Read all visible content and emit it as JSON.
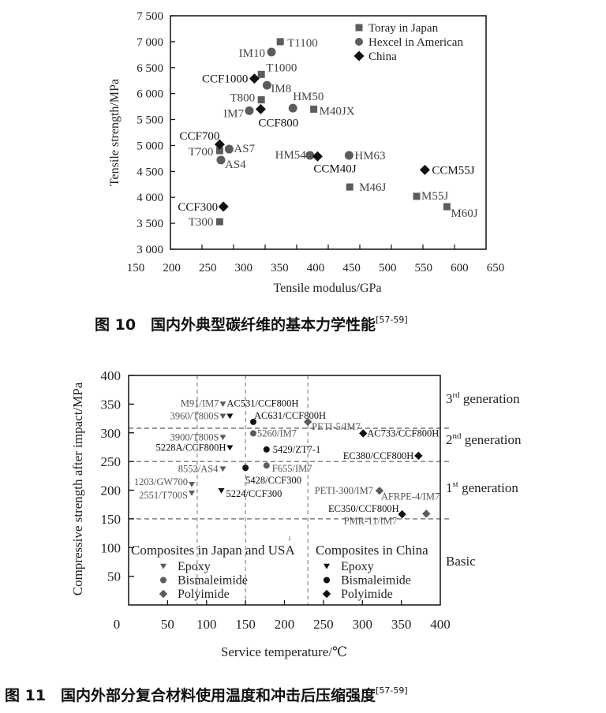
{
  "captions": {
    "fig10": "图 10　国内外典型碳纤维的基本力学性能",
    "fig10_ref": "[57-59]",
    "fig11": "图 11　国内外部分复合材料使用温度和冲击后压缩强度",
    "fig11_ref": "[57-59]"
  },
  "colors": {
    "japan_usa": "#5c5c5c",
    "china": "#111111"
  },
  "chart_data": [
    {
      "type": "scatter",
      "xlabel": "Tensile modulus/GPa",
      "ylabel": "Tensile strength/MPa",
      "xlim": [
        150,
        650
      ],
      "ylim": [
        3000,
        7500
      ],
      "xticks": [
        "150",
        "200",
        "250",
        "300",
        "350",
        "400",
        "450",
        "500",
        "550",
        "600",
        "650"
      ],
      "yticks": [
        "3 000",
        "3 500",
        "4 000",
        "4 500",
        "5 000",
        "5 500",
        "6 000",
        "6 500",
        "7 000",
        "7 500"
      ],
      "legend_position": "top-right",
      "grid": false,
      "series": [
        {
          "name": "Toray in Japan",
          "marker": "square",
          "color": "#5c5c5c",
          "points": [
            {
              "label": "T1100",
              "x": 324,
              "y": 7000
            },
            {
              "label": "T1000",
              "x": 294,
              "y": 6370
            },
            {
              "label": "T800",
              "x": 294,
              "y": 5880
            },
            {
              "label": "M40JX",
              "x": 377,
              "y": 5700
            },
            {
              "label": "T700",
              "x": 228,
              "y": 4900
            },
            {
              "label": "T300",
              "x": 228,
              "y": 3530
            },
            {
              "label": "M46J",
              "x": 434,
              "y": 4200
            },
            {
              "label": "M55J",
              "x": 540,
              "y": 4020
            },
            {
              "label": "M60J",
              "x": 588,
              "y": 3820
            }
          ]
        },
        {
          "name": "Hexcel in American",
          "marker": "circle",
          "color": "#5c5c5c",
          "points": [
            {
              "label": "IM10",
              "x": 310,
              "y": 6800
            },
            {
              "label": "IM8",
              "x": 303,
              "y": 6160
            },
            {
              "label": "HM50",
              "x": 344,
              "y": 5720
            },
            {
              "label": "IM7",
              "x": 275,
              "y": 5670
            },
            {
              "label": "AS7",
              "x": 243,
              "y": 4930
            },
            {
              "label": "AS4",
              "x": 230,
              "y": 4720
            },
            {
              "label": "HM54",
              "x": 371,
              "y": 4810
            },
            {
              "label": "HM63",
              "x": 433,
              "y": 4810
            }
          ]
        },
        {
          "name": "China",
          "marker": "diamond",
          "color": "#111111",
          "points": [
            {
              "label": "CCF1000",
              "x": 283,
              "y": 6290
            },
            {
              "label": "CCF800",
              "x": 293,
              "y": 5700
            },
            {
              "label": "CCF700",
              "x": 228,
              "y": 5020
            },
            {
              "label": "CCM40J",
              "x": 383,
              "y": 4790
            },
            {
              "label": "CCM55J",
              "x": 553,
              "y": 4530
            },
            {
              "label": "CCF300",
              "x": 234,
              "y": 3820
            }
          ]
        }
      ]
    },
    {
      "type": "scatter",
      "xlabel": "Service temperature/℃",
      "ylabel": "Compressive strength after impact/MPa",
      "xlim": [
        0,
        400
      ],
      "ylim": [
        0,
        400
      ],
      "xticks": [
        "0",
        "50",
        "100",
        "150",
        "200",
        "250",
        "300",
        "350",
        "400"
      ],
      "yticks": [
        "50",
        "100",
        "150",
        "200",
        "250",
        "300",
        "350",
        "400"
      ],
      "ytick_values": [
        50,
        100,
        150,
        200,
        250,
        300,
        350,
        400
      ],
      "vertical_reference_lines": [
        88,
        150,
        230
      ],
      "horizontal_reference_lines": [
        150,
        250,
        308
      ],
      "zones": [
        {
          "base": "3",
          "sup": "rd",
          "text": " generation"
        },
        {
          "base": "2",
          "sup": "nd",
          "text": " generation"
        },
        {
          "base": "1",
          "sup": "st",
          "text": " generation"
        },
        {
          "base": "Basic",
          "sup": "",
          "text": ""
        }
      ],
      "legend": {
        "groups": [
          {
            "title": "Composites in Japan and USA",
            "color": "#5c5c5c",
            "items": [
              "Epoxy",
              "Bismaleimide",
              "Polyimide"
            ]
          },
          {
            "title": "Composites in China",
            "color": "#111111",
            "items": [
              "Epoxy",
              "Bismaleimide",
              "Polyimide"
            ]
          }
        ],
        "position": "bottom-inside"
      },
      "series": [
        {
          "name": "Epoxy",
          "group": "Japan and USA",
          "marker": "triangle-down",
          "color": "#5c5c5c",
          "points": [
            {
              "label": "M91/IM7",
              "x": 121,
              "y": 350
            },
            {
              "label": "3960/T800S",
              "x": 121,
              "y": 329
            },
            {
              "label": "3900/T800S",
              "x": 121,
              "y": 292
            },
            {
              "label": "8552/AS4",
              "x": 121,
              "y": 237
            },
            {
              "label": "1203/GW700",
              "x": 81,
              "y": 210
            },
            {
              "label": "2551/T700S",
              "x": 81,
              "y": 195
            }
          ]
        },
        {
          "name": "Epoxy",
          "group": "China",
          "marker": "triangle-down",
          "color": "#111111",
          "points": [
            {
              "label": "AC531/CCF800H",
              "x": 130,
              "y": 329
            },
            {
              "label": "5228A/CCF800H",
              "x": 130,
              "y": 274
            },
            {
              "label": "5224/CCF300",
              "x": 119,
              "y": 199
            }
          ]
        },
        {
          "name": "Bismaleimide",
          "group": "Japan and USA",
          "marker": "circle",
          "color": "#5c5c5c",
          "points": [
            {
              "label": "5260/IM7",
              "x": 160,
              "y": 299
            },
            {
              "label": "F655/IM7",
              "x": 177,
              "y": 243
            }
          ]
        },
        {
          "name": "Bismaleimide",
          "group": "China",
          "marker": "circle",
          "color": "#111111",
          "points": [
            {
              "label": "AC631/CCF800H",
              "x": 160,
              "y": 319
            },
            {
              "label": "5429/ZT7-1",
              "x": 177,
              "y": 271
            },
            {
              "label": "5428/CCF300",
              "x": 150,
              "y": 239
            }
          ]
        },
        {
          "name": "Polyimide",
          "group": "Japan and USA",
          "marker": "diamond",
          "color": "#5c5c5c",
          "points": [
            {
              "label": "PETI-5/IM7",
              "x": 230,
              "y": 319
            },
            {
              "label": "PETI-300/IM7",
              "x": 322,
              "y": 199
            },
            {
              "label": "AFRPE-4/IM7",
              "x": 382,
              "y": 159
            },
            {
              "label": "PMR-11/IM7",
              "x": 382,
              "y": 159
            }
          ]
        },
        {
          "name": "Polyimide",
          "group": "China",
          "marker": "diamond",
          "color": "#111111",
          "points": [
            {
              "label": "AC733/CCF800H",
              "x": 301,
              "y": 299
            },
            {
              "label": "EC380/CCF800H",
              "x": 372,
              "y": 260
            },
            {
              "label": "EC350/CCF800H",
              "x": 351,
              "y": 158
            }
          ]
        }
      ]
    }
  ]
}
